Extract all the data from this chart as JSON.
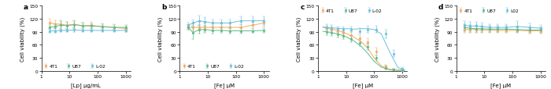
{
  "panels": [
    "a",
    "b",
    "c",
    "d"
  ],
  "xlabels": [
    "[Lp] μg/mL",
    "[Fe] μM",
    "[Fe] μM",
    "[Fe] μM"
  ],
  "cell_lines": [
    "4T1",
    "U87",
    "L-02"
  ],
  "cell_lines_d": [
    "4T1",
    "U87",
    "L02"
  ],
  "colors": [
    "#F5A962",
    "#5BBD8A",
    "#6BBFDE"
  ],
  "panel_a": {
    "x": [
      2,
      3,
      5,
      8,
      15,
      30,
      60,
      150,
      400,
      1000
    ],
    "4T1_y": [
      110,
      108,
      107,
      105,
      107,
      103,
      105,
      101,
      100,
      97
    ],
    "4T1_err": [
      10,
      9,
      9,
      8,
      9,
      8,
      7,
      8,
      7,
      7
    ],
    "U87_y": [
      100,
      102,
      105,
      104,
      106,
      104,
      103,
      102,
      100,
      100
    ],
    "U87_err": [
      5,
      6,
      10,
      8,
      8,
      6,
      6,
      6,
      5,
      5
    ],
    "L02_y": [
      92,
      92,
      93,
      93,
      94,
      93,
      93,
      93,
      93,
      93
    ],
    "L02_err": [
      4,
      4,
      4,
      4,
      4,
      4,
      4,
      4,
      4,
      4
    ]
  },
  "panel_b": {
    "x": [
      2,
      3,
      5,
      8,
      15,
      30,
      60,
      150,
      400,
      1000
    ],
    "4T1_y": [
      100,
      100,
      100,
      100,
      100,
      100,
      100,
      100,
      105,
      110
    ],
    "4T1_err": [
      6,
      7,
      8,
      9,
      8,
      8,
      8,
      8,
      7,
      8
    ],
    "U87_y": [
      100,
      88,
      95,
      95,
      93,
      93,
      92,
      92,
      92,
      93
    ],
    "U87_err": [
      5,
      15,
      10,
      8,
      7,
      6,
      6,
      6,
      5,
      5
    ],
    "L02_y": [
      105,
      110,
      115,
      113,
      110,
      110,
      110,
      115,
      115,
      115
    ],
    "L02_err": [
      5,
      8,
      12,
      10,
      8,
      8,
      8,
      10,
      10,
      10
    ]
  },
  "panel_c": {
    "x": [
      2,
      3,
      5,
      8,
      15,
      30,
      60,
      120,
      250,
      500,
      1000
    ],
    "4T1_y": [
      98,
      95,
      92,
      88,
      82,
      75,
      67,
      45,
      10,
      3,
      2
    ],
    "4T1_err": [
      6,
      6,
      7,
      7,
      7,
      8,
      8,
      8,
      5,
      2,
      2
    ],
    "U87_y": [
      90,
      88,
      84,
      80,
      73,
      64,
      56,
      30,
      8,
      3,
      2
    ],
    "U87_err": [
      7,
      7,
      7,
      7,
      7,
      7,
      7,
      6,
      4,
      2,
      2
    ],
    "L02_y": [
      100,
      98,
      96,
      95,
      95,
      92,
      95,
      95,
      85,
      40,
      5
    ],
    "L02_err": [
      7,
      7,
      6,
      6,
      6,
      6,
      8,
      8,
      10,
      8,
      4
    ],
    "4T1_fit_x": [
      1.5,
      2,
      3,
      5,
      8,
      12,
      20,
      35,
      60,
      100,
      180,
      350,
      700,
      1200
    ],
    "4T1_fit_y": [
      100,
      98,
      96,
      93,
      89,
      84,
      77,
      67,
      52,
      30,
      12,
      4,
      2,
      2
    ],
    "U87_fit_x": [
      1.5,
      2,
      3,
      5,
      8,
      12,
      20,
      35,
      60,
      100,
      180,
      350,
      700,
      1200
    ],
    "U87_fit_y": [
      91,
      90,
      88,
      85,
      81,
      76,
      68,
      56,
      40,
      22,
      9,
      3,
      2,
      2
    ],
    "L02_fit_x": [
      1.5,
      2,
      3,
      5,
      8,
      12,
      20,
      35,
      60,
      100,
      180,
      350,
      700,
      1200
    ],
    "L02_fit_y": [
      101,
      100,
      99,
      98,
      97,
      97,
      96,
      97,
      97,
      95,
      85,
      45,
      8,
      3
    ]
  },
  "panel_d": {
    "x": [
      2,
      3,
      5,
      8,
      15,
      30,
      60,
      150,
      400,
      1000
    ],
    "4T1_y": [
      95,
      95,
      95,
      94,
      94,
      93,
      93,
      93,
      92,
      92
    ],
    "4T1_err": [
      7,
      7,
      7,
      7,
      6,
      6,
      6,
      6,
      6,
      6
    ],
    "U87_y": [
      100,
      98,
      97,
      97,
      96,
      96,
      96,
      95,
      94,
      94
    ],
    "U87_err": [
      8,
      8,
      8,
      7,
      7,
      7,
      7,
      6,
      6,
      6
    ],
    "L02_y": [
      105,
      103,
      103,
      102,
      100,
      100,
      100,
      102,
      100,
      98
    ],
    "L02_err": [
      10,
      10,
      9,
      8,
      8,
      7,
      7,
      12,
      9,
      8
    ]
  },
  "ylim": [
    0,
    150
  ],
  "yticks": [
    0,
    30,
    60,
    90,
    120,
    150
  ],
  "ylabel": "Cell viability (%)",
  "marker": "o",
  "markersize": 2.0,
  "linewidth": 0.7,
  "capsize": 1.2,
  "elinewidth": 0.5,
  "legend_fontsize": 4.2,
  "axis_fontsize": 5.0,
  "tick_fontsize": 4.2,
  "label_fontsize": 6.5
}
